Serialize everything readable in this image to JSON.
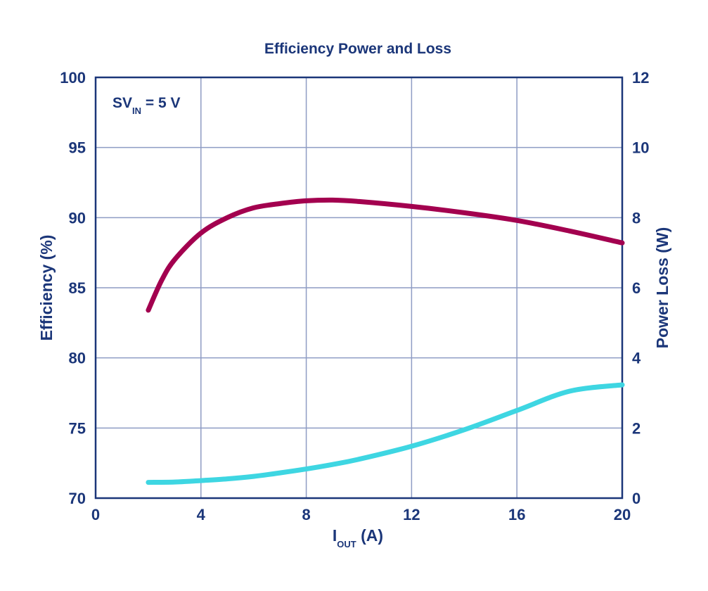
{
  "chart_data": {
    "type": "line",
    "title": "Efficiency Power and Loss",
    "annotation": {
      "main": "SV",
      "sub": "IN",
      "rest": " = 5 V"
    },
    "xlabel": {
      "main": "I",
      "sub": "OUT",
      "rest": " (A)"
    },
    "ylabel_left": "Efficiency (%)",
    "ylabel_right": "Power Loss (W)",
    "xlim": [
      0,
      20
    ],
    "ylim_left": [
      70,
      100
    ],
    "ylim_right": [
      0,
      12
    ],
    "x_ticks": [
      "0",
      "4",
      "8",
      "12",
      "16",
      "20"
    ],
    "y_left_ticks": [
      "70",
      "75",
      "80",
      "85",
      "90",
      "95",
      "100"
    ],
    "y_right_ticks": [
      "0",
      "2",
      "4",
      "6",
      "8",
      "10",
      "12"
    ],
    "grid": true,
    "series": [
      {
        "axis": "left",
        "color": "#a3004f",
        "points": [
          [
            2,
            83.4
          ],
          [
            2.5,
            85.5
          ],
          [
            3,
            87.0
          ],
          [
            4,
            88.9
          ],
          [
            5,
            90.0
          ],
          [
            6,
            90.7
          ],
          [
            7,
            91.0
          ],
          [
            8,
            91.2
          ],
          [
            9,
            91.25
          ],
          [
            10,
            91.15
          ],
          [
            12,
            90.8
          ],
          [
            14,
            90.35
          ],
          [
            16,
            89.8
          ],
          [
            18,
            89.05
          ],
          [
            20,
            88.2
          ]
        ]
      },
      {
        "axis": "right",
        "color": "#3ed6e2",
        "points": [
          [
            2,
            0.45
          ],
          [
            3,
            0.46
          ],
          [
            4,
            0.5
          ],
          [
            5,
            0.55
          ],
          [
            6,
            0.62
          ],
          [
            7,
            0.72
          ],
          [
            8,
            0.83
          ],
          [
            9,
            0.96
          ],
          [
            10,
            1.11
          ],
          [
            12,
            1.48
          ],
          [
            14,
            1.95
          ],
          [
            16,
            2.5
          ],
          [
            18,
            3.05
          ],
          [
            20,
            3.23
          ]
        ]
      }
    ]
  }
}
